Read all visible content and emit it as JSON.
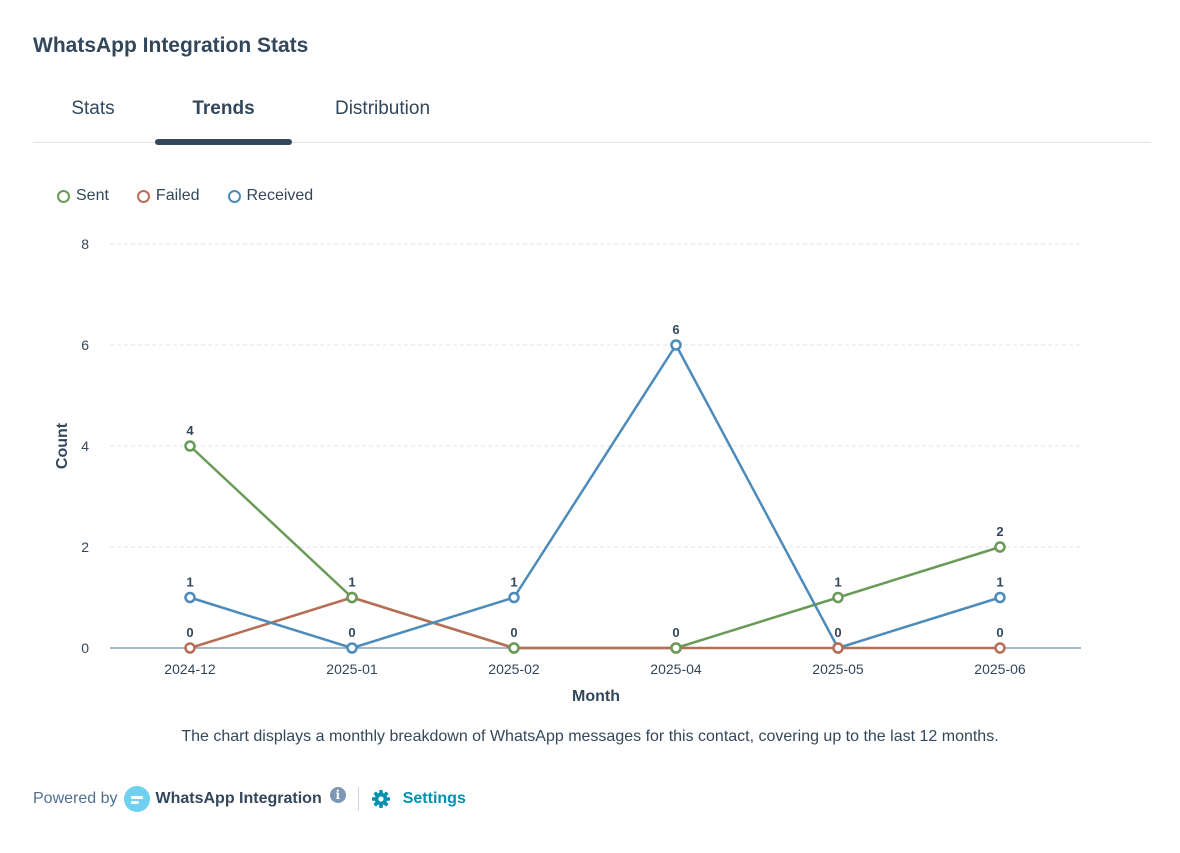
{
  "card": {
    "title": "WhatsApp Integration Stats"
  },
  "tabs": [
    {
      "label": "Stats",
      "active": false
    },
    {
      "label": "Trends",
      "active": true
    },
    {
      "label": "Distribution",
      "active": false
    }
  ],
  "chart_data": {
    "type": "line",
    "title": "",
    "xlabel": "Month",
    "ylabel": "Count",
    "categories": [
      "2024-12",
      "2025-01",
      "2025-02",
      "2025-04",
      "2025-05",
      "2025-06"
    ],
    "ylim": [
      0,
      8
    ],
    "yticks": [
      0,
      2,
      4,
      6,
      8
    ],
    "grid": true,
    "legend": "top-left",
    "series": [
      {
        "name": "Sent",
        "color": "#6a9a58",
        "values": [
          4,
          1,
          0,
          0,
          1,
          2
        ]
      },
      {
        "name": "Failed",
        "color": "#b86d56",
        "values": [
          0,
          1,
          0,
          0,
          0,
          0
        ]
      },
      {
        "name": "Received",
        "color": "#4c8bba",
        "values": [
          1,
          0,
          1,
          6,
          0,
          1
        ]
      }
    ],
    "data_labels": [
      {
        "category": "2024-12",
        "labels": [
          "4",
          "1",
          "0"
        ]
      },
      {
        "category": "2025-01",
        "labels": [
          "1",
          "0"
        ]
      },
      {
        "category": "2025-02",
        "labels": [
          "1",
          "0"
        ]
      },
      {
        "category": "2025-04",
        "labels": [
          "6",
          "0"
        ]
      },
      {
        "category": "2025-05",
        "labels": [
          "1",
          "0"
        ]
      },
      {
        "category": "2025-06",
        "labels": [
          "2",
          "1",
          "0"
        ]
      }
    ]
  },
  "caption": "The chart displays a monthly breakdown of WhatsApp messages for this contact, covering up to the last 12 months.",
  "footer": {
    "powered_by": "Powered by",
    "brand_name": "WhatsApp Integration",
    "brand_icon": "chat-bubble-icon",
    "info_icon": "info-icon",
    "settings_label": "Settings",
    "settings_icon": "gear-icon",
    "link_color": "#0091ae"
  }
}
